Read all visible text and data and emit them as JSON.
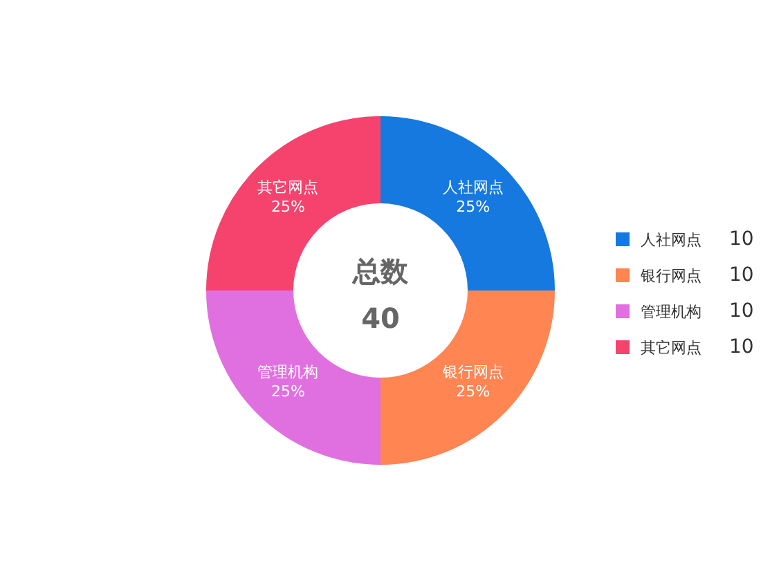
{
  "chart_data": {
    "type": "donut",
    "categories": [
      "人社网点",
      "银行网点",
      "管理机构",
      "其它网点"
    ],
    "values": [
      25,
      25,
      25,
      25
    ],
    "colors": [
      "#1579e0",
      "#ff8552",
      "#e070e0",
      "#f5436e"
    ],
    "value_labels": [
      "25%",
      "25%",
      "25%",
      "25%"
    ],
    "annotations": [
      "总数",
      "40",
      {
        "text": "10",
        "x": "人社网点"
      },
      {
        "text": "10",
        "x": "银行网点"
      },
      {
        "text": "10",
        "x": "管理机构"
      },
      {
        "text": "10",
        "x": "其它网点"
      }
    ],
    "legend": "right"
  }
}
